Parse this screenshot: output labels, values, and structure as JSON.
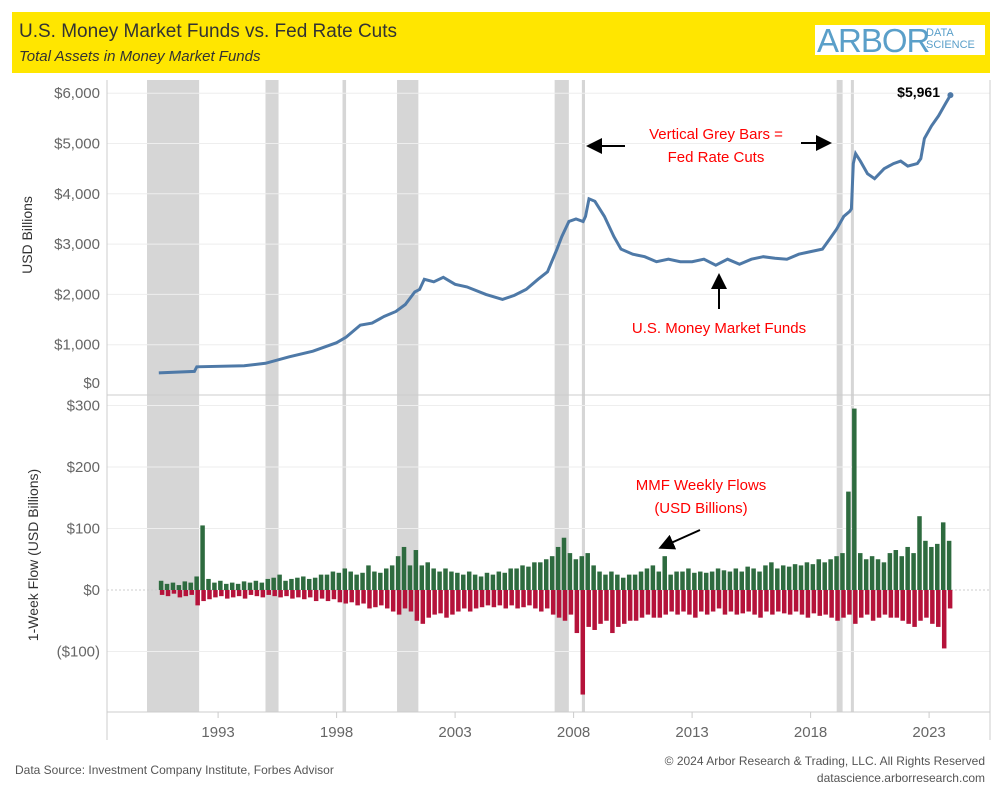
{
  "header": {
    "title": "U.S. Money Market Funds vs. Fed Rate Cuts",
    "subtitle": "Total Assets in Money Market Funds",
    "logo_main": "ARBOR",
    "logo_sub_1": "DATA",
    "logo_sub_2": "SCIENCE"
  },
  "footer": {
    "source": "Data Source: Investment Company Institute, Forbes Advisor",
    "copyright": "© 2024 Arbor Research & Trading, LLC. All Rights Reserved",
    "url": "datascience.arborresearch.com"
  },
  "colors": {
    "line": "#4e79a7",
    "inflow": "#2e6b3f",
    "outflow": "#b5123a",
    "rate_cut_bar": "#d6d6d6",
    "annotation": "#ff0000",
    "header": "#ffe600"
  },
  "chart_data": [
    {
      "type": "line",
      "title": "Total Assets in Money Market Funds",
      "ylabel": "USD Billions",
      "ylim": [
        0,
        6000
      ],
      "yticks": [
        "$0",
        "$1,000",
        "$2,000",
        "$3,000",
        "$4,000",
        "$5,000",
        "$6,000"
      ],
      "xticks": [
        "1993",
        "1998",
        "2003",
        "2008",
        "2013",
        "2018",
        "2023"
      ],
      "rate_cuts": [
        [
          1990.5,
          1992.7
        ],
        [
          1995.5,
          1996.05
        ],
        [
          1998.75,
          1998.9
        ],
        [
          2001.05,
          2001.95
        ],
        [
          2007.7,
          2008.3
        ],
        [
          2008.85,
          2008.98
        ],
        [
          2019.6,
          2019.85
        ],
        [
          2020.2,
          2020.25
        ]
      ],
      "series": [
        {
          "points": [
            [
              1991.0,
              440
            ],
            [
              1992.5,
              470
            ],
            [
              1992.6,
              560
            ],
            [
              1994.6,
              580
            ],
            [
              1995.5,
              630
            ],
            [
              1996.5,
              760
            ],
            [
              1997.5,
              870
            ],
            [
              1998.5,
              1040
            ],
            [
              1998.9,
              1150
            ],
            [
              1999.5,
              1390
            ],
            [
              2000,
              1430
            ],
            [
              2000.5,
              1560
            ],
            [
              2001,
              1660
            ],
            [
              2001.4,
              1800
            ],
            [
              2001.8,
              2050
            ],
            [
              2002,
              2100
            ],
            [
              2002.2,
              2300
            ],
            [
              2002.6,
              2250
            ],
            [
              2003,
              2340
            ],
            [
              2003.5,
              2200
            ],
            [
              2004,
              2150
            ],
            [
              2004.8,
              2000
            ],
            [
              2005.5,
              1900
            ],
            [
              2006,
              1980
            ],
            [
              2006.5,
              2100
            ],
            [
              2007,
              2300
            ],
            [
              2007.4,
              2450
            ],
            [
              2007.8,
              2900
            ],
            [
              2008,
              3150
            ],
            [
              2008.3,
              3450
            ],
            [
              2008.6,
              3500
            ],
            [
              2008.9,
              3450
            ],
            [
              2009.0,
              3550
            ],
            [
              2009.15,
              3900
            ],
            [
              2009.4,
              3850
            ],
            [
              2009.8,
              3550
            ],
            [
              2010.2,
              3150
            ],
            [
              2010.5,
              2900
            ],
            [
              2011,
              2800
            ],
            [
              2011.5,
              2750
            ],
            [
              2012,
              2650
            ],
            [
              2012.5,
              2700
            ],
            [
              2013,
              2650
            ],
            [
              2013.5,
              2650
            ],
            [
              2014,
              2700
            ],
            [
              2014.5,
              2580
            ],
            [
              2015,
              2700
            ],
            [
              2015.5,
              2600
            ],
            [
              2016,
              2700
            ],
            [
              2016.5,
              2750
            ],
            [
              2017,
              2720
            ],
            [
              2017.5,
              2700
            ],
            [
              2018,
              2800
            ],
            [
              2018.5,
              2850
            ],
            [
              2019,
              2900
            ],
            [
              2019.3,
              3100
            ],
            [
              2019.6,
              3300
            ],
            [
              2019.9,
              3550
            ],
            [
              2020.15,
              3650
            ],
            [
              2020.22,
              3700
            ],
            [
              2020.3,
              4600
            ],
            [
              2020.4,
              4800
            ],
            [
              2020.6,
              4650
            ],
            [
              2020.9,
              4400
            ],
            [
              2021.2,
              4300
            ],
            [
              2021.6,
              4500
            ],
            [
              2022,
              4600
            ],
            [
              2022.3,
              4650
            ],
            [
              2022.6,
              4550
            ],
            [
              2023,
              4600
            ],
            [
              2023.15,
              4700
            ],
            [
              2023.3,
              5100
            ],
            [
              2023.6,
              5350
            ],
            [
              2023.9,
              5550
            ],
            [
              2024.2,
              5800
            ],
            [
              2024.4,
              5961
            ]
          ]
        }
      ],
      "end_label": "$5,961",
      "annotations": {
        "bars_line1": "Vertical Grey Bars =",
        "bars_line2": "Fed Rate Cuts",
        "series_label": "U.S. Money Market Funds"
      }
    },
    {
      "type": "bar",
      "ylabel": "1-Week Flow (USD Billions)",
      "ylim": [
        -175,
        310
      ],
      "yticks": [
        "($100)",
        "$0",
        "$100",
        "$200",
        "$300"
      ],
      "period_start": 1991.0,
      "period_years": 0.25,
      "inflows": [
        15,
        10,
        12,
        8,
        14,
        12,
        22,
        105,
        18,
        12,
        15,
        10,
        12,
        10,
        14,
        12,
        15,
        12,
        18,
        20,
        25,
        15,
        18,
        20,
        22,
        18,
        20,
        25,
        25,
        30,
        28,
        35,
        30,
        25,
        28,
        40,
        30,
        28,
        35,
        40,
        55,
        70,
        40,
        65,
        40,
        45,
        35,
        30,
        35,
        30,
        28,
        25,
        30,
        25,
        22,
        28,
        25,
        30,
        28,
        35,
        35,
        40,
        38,
        45,
        45,
        50,
        55,
        70,
        85,
        60,
        50,
        55,
        60,
        40,
        30,
        25,
        30,
        25,
        20,
        25,
        25,
        30,
        35,
        40,
        30,
        55,
        25,
        30,
        30,
        35,
        28,
        30,
        28,
        30,
        35,
        32,
        30,
        35,
        30,
        38,
        35,
        30,
        40,
        45,
        35,
        40,
        38,
        42,
        40,
        45,
        42,
        50,
        45,
        50,
        55,
        60,
        160,
        295,
        60,
        50,
        55,
        50,
        45,
        60,
        65,
        55,
        70,
        60,
        120,
        80,
        70,
        75,
        110,
        80
      ],
      "outflows": [
        -8,
        -10,
        -6,
        -12,
        -10,
        -8,
        -25,
        -18,
        -15,
        -12,
        -10,
        -14,
        -12,
        -10,
        -14,
        -8,
        -10,
        -12,
        -8,
        -10,
        -12,
        -10,
        -14,
        -12,
        -15,
        -12,
        -18,
        -14,
        -18,
        -15,
        -20,
        -22,
        -20,
        -25,
        -22,
        -30,
        -28,
        -25,
        -30,
        -35,
        -40,
        -30,
        -35,
        -50,
        -55,
        -45,
        -40,
        -38,
        -45,
        -40,
        -35,
        -30,
        -35,
        -30,
        -28,
        -25,
        -28,
        -25,
        -30,
        -25,
        -30,
        -28,
        -25,
        -30,
        -35,
        -30,
        -40,
        -45,
        -50,
        -40,
        -70,
        -170,
        -60,
        -65,
        -55,
        -50,
        -70,
        -60,
        -55,
        -50,
        -50,
        -45,
        -40,
        -45,
        -45,
        -40,
        -35,
        -40,
        -35,
        -40,
        -45,
        -35,
        -40,
        -35,
        -30,
        -40,
        -35,
        -40,
        -38,
        -35,
        -40,
        -45,
        -35,
        -40,
        -35,
        -38,
        -40,
        -35,
        -40,
        -45,
        -38,
        -42,
        -40,
        -45,
        -50,
        -45,
        -40,
        -55,
        -45,
        -40,
        -50,
        -45,
        -40,
        -45,
        -45,
        -50,
        -55,
        -60,
        -50,
        -45,
        -55,
        -60,
        -95,
        -30
      ],
      "annotations": {
        "flows_line1": "MMF Weekly Flows",
        "flows_line2": "(USD Billions)"
      }
    }
  ]
}
